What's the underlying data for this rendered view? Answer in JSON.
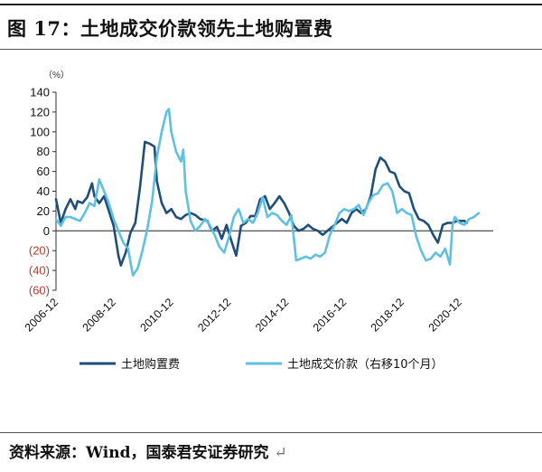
{
  "title": "图 17：土地成交价款领先土地购置费",
  "source": "资料来源：Wind，国泰君安证券研究",
  "source_mark": "↵",
  "chart_data": {
    "type": "line",
    "title": "",
    "xlabel": "",
    "ylabel": "",
    "unit": "（%）",
    "ylim": [
      -60,
      140
    ],
    "yticks": [
      140,
      120,
      100,
      80,
      60,
      40,
      20,
      0,
      -20,
      -40,
      -60
    ],
    "ytick_labels": [
      "140",
      "120",
      "100",
      "80",
      "60",
      "40",
      "20",
      "0",
      "(20)",
      "(40)",
      "(60)"
    ],
    "negative_tick_color": "#c0392b",
    "xlim": [
      "2006-12",
      "2022-02"
    ],
    "xticks": [
      "2006-12",
      "2008-12",
      "2010-12",
      "2012-12",
      "2014-12",
      "2016-12",
      "2018-12",
      "2020-12"
    ],
    "grid": false,
    "legend_position": "bottom",
    "series": [
      {
        "name": "土地购置费",
        "color": "#1f4e79",
        "points": [
          [
            "2006-12",
            32
          ],
          [
            "2007-02",
            8
          ],
          [
            "2007-04",
            22
          ],
          [
            "2007-06",
            32
          ],
          [
            "2007-08",
            22
          ],
          [
            "2007-09",
            30
          ],
          [
            "2007-11",
            28
          ],
          [
            "2008-01",
            34
          ],
          [
            "2008-03",
            48
          ],
          [
            "2008-04",
            35
          ],
          [
            "2008-06",
            28
          ],
          [
            "2008-08",
            35
          ],
          [
            "2008-10",
            20
          ],
          [
            "2008-12",
            5
          ],
          [
            "2009-02",
            -25
          ],
          [
            "2009-03",
            -35
          ],
          [
            "2009-05",
            -22
          ],
          [
            "2009-07",
            -2
          ],
          [
            "2009-09",
            8
          ],
          [
            "2009-11",
            45
          ],
          [
            "2010-01",
            90
          ],
          [
            "2010-03",
            88
          ],
          [
            "2010-05",
            85
          ],
          [
            "2010-06",
            50
          ],
          [
            "2010-08",
            28
          ],
          [
            "2010-10",
            18
          ],
          [
            "2010-12",
            22
          ],
          [
            "2011-02",
            14
          ],
          [
            "2011-04",
            12
          ],
          [
            "2011-06",
            16
          ],
          [
            "2011-08",
            18
          ],
          [
            "2011-10",
            16
          ],
          [
            "2011-12",
            12
          ],
          [
            "2012-03",
            10
          ],
          [
            "2012-05",
            0
          ],
          [
            "2012-07",
            4
          ],
          [
            "2012-09",
            -8
          ],
          [
            "2012-11",
            6
          ],
          [
            "2013-01",
            -10
          ],
          [
            "2013-03",
            -25
          ],
          [
            "2013-05",
            5
          ],
          [
            "2013-07",
            8
          ],
          [
            "2013-09",
            15
          ],
          [
            "2013-11",
            15
          ],
          [
            "2014-01",
            32
          ],
          [
            "2014-03",
            35
          ],
          [
            "2014-05",
            22
          ],
          [
            "2014-07",
            28
          ],
          [
            "2014-09",
            35
          ],
          [
            "2014-11",
            28
          ],
          [
            "2015-01",
            18
          ],
          [
            "2015-03",
            5
          ],
          [
            "2015-05",
            0
          ],
          [
            "2015-07",
            2
          ],
          [
            "2015-09",
            6
          ],
          [
            "2015-11",
            2
          ],
          [
            "2016-01",
            0
          ],
          [
            "2016-03",
            -4
          ],
          [
            "2016-05",
            0
          ],
          [
            "2016-07",
            4
          ],
          [
            "2016-09",
            8
          ],
          [
            "2016-11",
            12
          ],
          [
            "2017-01",
            8
          ],
          [
            "2017-03",
            18
          ],
          [
            "2017-05",
            22
          ],
          [
            "2017-07",
            18
          ],
          [
            "2017-09",
            22
          ],
          [
            "2017-11",
            35
          ],
          [
            "2018-01",
            62
          ],
          [
            "2018-03",
            74
          ],
          [
            "2018-05",
            70
          ],
          [
            "2018-07",
            60
          ],
          [
            "2018-09",
            58
          ],
          [
            "2018-11",
            45
          ],
          [
            "2019-01",
            40
          ],
          [
            "2019-03",
            38
          ],
          [
            "2019-05",
            22
          ],
          [
            "2019-07",
            12
          ],
          [
            "2019-09",
            10
          ],
          [
            "2019-11",
            6
          ],
          [
            "2020-01",
            -4
          ],
          [
            "2020-03",
            -12
          ],
          [
            "2020-05",
            6
          ],
          [
            "2020-07",
            8
          ],
          [
            "2020-09",
            8
          ],
          [
            "2020-11",
            10
          ],
          [
            "2020-12",
            10
          ],
          [
            "2021-02",
            10
          ],
          [
            "2021-03",
            8
          ]
        ]
      },
      {
        "name": "土地成交价款（右移10个月）",
        "color": "#5fc0e0",
        "points": [
          [
            "2006-12",
            12
          ],
          [
            "2007-02",
            5
          ],
          [
            "2007-04",
            14
          ],
          [
            "2007-06",
            14
          ],
          [
            "2007-08",
            12
          ],
          [
            "2007-10",
            10
          ],
          [
            "2007-12",
            18
          ],
          [
            "2008-02",
            28
          ],
          [
            "2008-04",
            25
          ],
          [
            "2008-06",
            52
          ],
          [
            "2008-08",
            40
          ],
          [
            "2008-10",
            28
          ],
          [
            "2008-12",
            12
          ],
          [
            "2009-02",
            0
          ],
          [
            "2009-04",
            -12
          ],
          [
            "2009-06",
            -18
          ],
          [
            "2009-08",
            -45
          ],
          [
            "2009-10",
            -38
          ],
          [
            "2009-12",
            -20
          ],
          [
            "2010-02",
            2
          ],
          [
            "2010-04",
            30
          ],
          [
            "2010-06",
            75
          ],
          [
            "2010-08",
            100
          ],
          [
            "2010-10",
            120
          ],
          [
            "2010-11",
            123
          ],
          [
            "2010-12",
            100
          ],
          [
            "2011-02",
            80
          ],
          [
            "2011-04",
            70
          ],
          [
            "2011-05",
            82
          ],
          [
            "2011-06",
            40
          ],
          [
            "2011-08",
            10
          ],
          [
            "2011-10",
            0
          ],
          [
            "2011-12",
            5
          ],
          [
            "2012-02",
            12
          ],
          [
            "2012-04",
            6
          ],
          [
            "2012-06",
            -4
          ],
          [
            "2012-08",
            -16
          ],
          [
            "2012-10",
            -22
          ],
          [
            "2012-12",
            -6
          ],
          [
            "2013-02",
            14
          ],
          [
            "2013-04",
            22
          ],
          [
            "2013-06",
            8
          ],
          [
            "2013-08",
            12
          ],
          [
            "2013-10",
            8
          ],
          [
            "2013-12",
            18
          ],
          [
            "2014-02",
            34
          ],
          [
            "2014-04",
            14
          ],
          [
            "2014-06",
            18
          ],
          [
            "2014-08",
            16
          ],
          [
            "2014-10",
            10
          ],
          [
            "2014-12",
            6
          ],
          [
            "2015-02",
            16
          ],
          [
            "2015-04",
            -30
          ],
          [
            "2015-06",
            -28
          ],
          [
            "2015-08",
            -26
          ],
          [
            "2015-10",
            -28
          ],
          [
            "2015-12",
            -24
          ],
          [
            "2016-02",
            -26
          ],
          [
            "2016-04",
            -22
          ],
          [
            "2016-06",
            -4
          ],
          [
            "2016-08",
            6
          ],
          [
            "2016-10",
            18
          ],
          [
            "2016-12",
            22
          ],
          [
            "2017-02",
            20
          ],
          [
            "2017-04",
            22
          ],
          [
            "2017-06",
            26
          ],
          [
            "2017-08",
            16
          ],
          [
            "2017-10",
            28
          ],
          [
            "2017-12",
            36
          ],
          [
            "2018-02",
            38
          ],
          [
            "2018-04",
            46
          ],
          [
            "2018-06",
            48
          ],
          [
            "2018-08",
            40
          ],
          [
            "2018-10",
            18
          ],
          [
            "2018-12",
            22
          ],
          [
            "2019-02",
            18
          ],
          [
            "2019-04",
            16
          ],
          [
            "2019-06",
            -6
          ],
          [
            "2019-08",
            -20
          ],
          [
            "2019-10",
            -30
          ],
          [
            "2019-12",
            -28
          ],
          [
            "2020-02",
            -22
          ],
          [
            "2020-04",
            -26
          ],
          [
            "2020-06",
            -18
          ],
          [
            "2020-08",
            -34
          ],
          [
            "2020-09",
            5
          ],
          [
            "2020-10",
            14
          ],
          [
            "2020-12",
            8
          ],
          [
            "2021-02",
            6
          ],
          [
            "2021-04",
            12
          ],
          [
            "2021-06",
            14
          ],
          [
            "2021-08",
            18
          ]
        ]
      }
    ]
  }
}
